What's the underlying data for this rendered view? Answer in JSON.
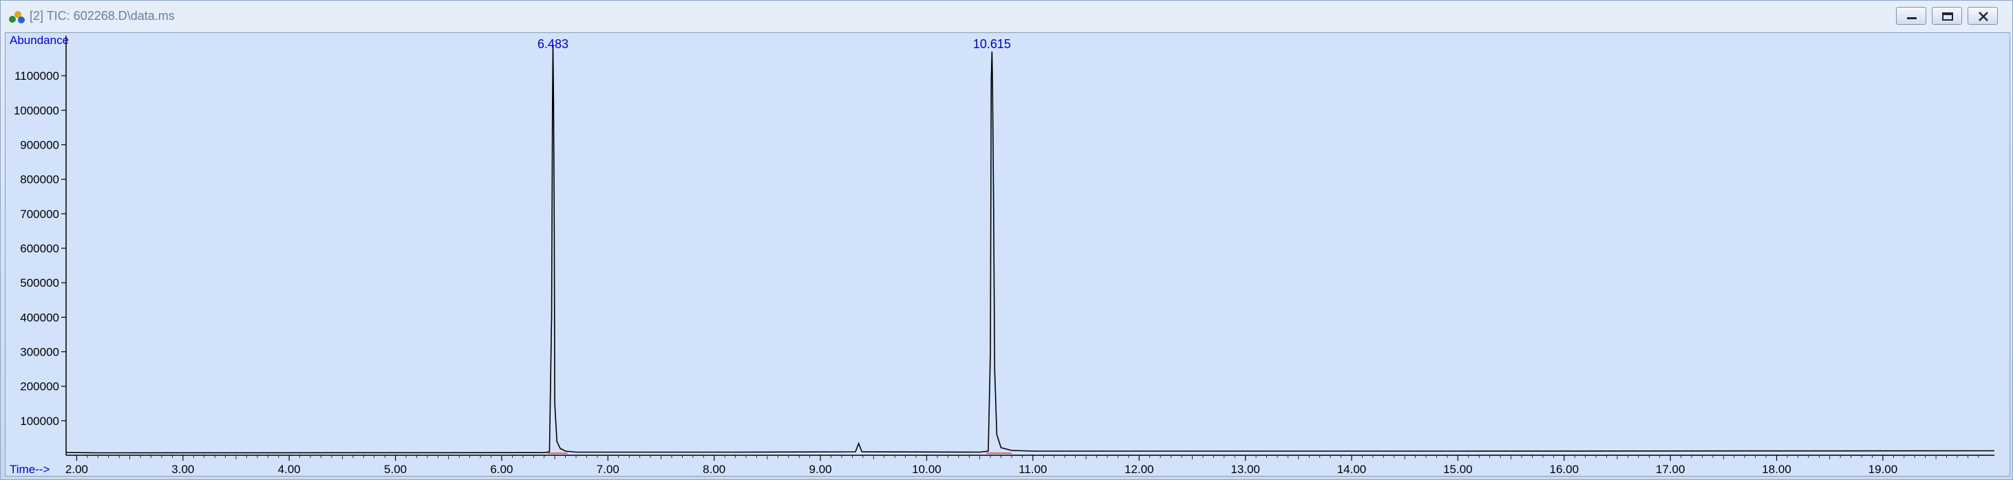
{
  "window": {
    "title": "[2] TIC: 602268.D\\data.ms",
    "icon": "chemstation-app-icon",
    "buttons": [
      "minimize-icon",
      "restore-icon",
      "close-icon"
    ]
  },
  "chart_data": {
    "type": "line",
    "ylabel": "Abundance",
    "xlabel": "Time-->",
    "xlim": [
      1.9,
      20.05
    ],
    "ylim": [
      0,
      1200000
    ],
    "x_ticks": [
      "2.00",
      "3.00",
      "4.00",
      "5.00",
      "6.00",
      "7.00",
      "8.00",
      "9.00",
      "10.00",
      "11.00",
      "12.00",
      "13.00",
      "14.00",
      "15.00",
      "16.00",
      "17.00",
      "18.00",
      "19.00"
    ],
    "y_ticks": [
      "100000",
      "200000",
      "300000",
      "400000",
      "500000",
      "600000",
      "700000",
      "800000",
      "900000",
      "1000000",
      "1100000"
    ],
    "series": [
      {
        "x": [
          1.9,
          2.2,
          6.4,
          6.45,
          6.47,
          6.478,
          6.483,
          6.488,
          6.495,
          6.5,
          6.52,
          6.55,
          6.6,
          6.7,
          8.2,
          9.33,
          9.36,
          9.39,
          10.5,
          10.58,
          10.6,
          10.608,
          10.615,
          10.62,
          10.63,
          10.64,
          10.66,
          10.7,
          10.8,
          11.0,
          15.0,
          20.05
        ],
        "y": [
          8000,
          7000,
          7500,
          10000,
          400000,
          1020000,
          1190000,
          1040000,
          650000,
          150000,
          40000,
          20000,
          12000,
          9000,
          9000,
          10000,
          34000,
          10000,
          9000,
          12000,
          300000,
          1090000,
          1170000,
          1080000,
          740000,
          250000,
          60000,
          22000,
          14000,
          12000,
          12000,
          13000
        ]
      }
    ],
    "peak_labels": [
      {
        "x": 6.483,
        "label": "6.483"
      },
      {
        "x": 10.615,
        "label": "10.615"
      }
    ],
    "integration_marks": [
      {
        "x_start": 6.43,
        "x_end": 6.62
      },
      {
        "x_start": 10.56,
        "x_end": 10.8
      }
    ],
    "colors": {
      "trace": "#000000",
      "labels": "#0000cc",
      "integration": "#ff3333",
      "background": "#d2e2fb"
    }
  }
}
